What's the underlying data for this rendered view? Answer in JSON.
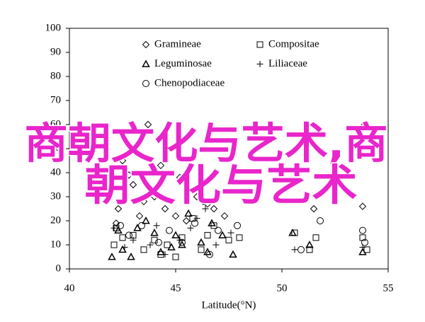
{
  "chart_data": {
    "type": "scatter",
    "xlabel": "Latitude(°N)",
    "xlim": [
      40,
      55
    ],
    "xticks": [
      40,
      45,
      50,
      55
    ],
    "ylim": [
      0,
      100
    ],
    "yticks": [
      0,
      10,
      20,
      30,
      40,
      50,
      60,
      70,
      80,
      90,
      100
    ],
    "overlay_text": [
      "商朝文化与艺术,商",
      "朝文化与艺术"
    ],
    "overlay_color": "#e925cb",
    "series": [
      {
        "name": "Gramineae",
        "color": "#000000",
        "marker": "diamond",
        "x": [
          42.2,
          42.3,
          42.5,
          42.8,
          43.0,
          43.3,
          43.5,
          43.7,
          44.0,
          44.3,
          44.5,
          45.0,
          45.2,
          45.5,
          46.0,
          46.3,
          46.5,
          46.8,
          47.3,
          51.5,
          51.6,
          53.9,
          53.8
        ],
        "values": [
          19,
          25,
          45,
          39,
          35,
          22,
          28,
          60,
          30,
          43,
          25,
          22,
          38,
          20,
          30,
          28,
          27,
          25,
          22,
          25,
          30,
          60,
          26
        ]
      },
      {
        "name": "Compositae",
        "color": "#000000",
        "marker": "square",
        "x": [
          42.1,
          42.2,
          42.5,
          43.0,
          43.5,
          44.0,
          44.3,
          44.6,
          45.0,
          45.3,
          45.8,
          46.2,
          46.5,
          46.8,
          47.5,
          48.0,
          50.6,
          51.3,
          51.6,
          53.8,
          54.0
        ],
        "values": [
          10,
          17,
          13,
          14,
          8,
          12,
          6,
          10,
          5,
          13,
          21,
          8,
          14,
          18,
          12,
          13,
          15,
          8,
          13,
          13,
          8
        ]
      },
      {
        "name": "Leguminosae",
        "color": "#000000",
        "marker": "triangle",
        "x": [
          42.0,
          42.3,
          42.5,
          42.9,
          43.2,
          43.6,
          44.0,
          44.3,
          44.8,
          45.0,
          45.3,
          45.6,
          46.2,
          46.5,
          46.7,
          47.2,
          47.7,
          50.5,
          51.3,
          53.8
        ],
        "values": [
          5,
          16,
          8,
          5,
          17,
          20,
          15,
          7,
          9,
          14,
          10,
          23,
          11,
          7,
          19,
          14,
          6,
          15,
          10,
          7
        ]
      },
      {
        "name": "Liliaceae",
        "color": "#000000",
        "marker": "plus",
        "x": [
          42.1,
          42.6,
          43.0,
          43.8,
          44.1,
          44.5,
          45.2,
          45.7,
          46.0,
          46.4,
          46.9,
          47.6,
          50.6,
          53.8
        ],
        "values": [
          17,
          9,
          12,
          10,
          18,
          6,
          12,
          17,
          21,
          25,
          10,
          15,
          8,
          9
        ]
      },
      {
        "name": "Chenopodiaceae",
        "color": "#000000",
        "marker": "circle",
        "x": [
          42.4,
          42.8,
          43.4,
          44.2,
          44.7,
          45.3,
          45.9,
          46.6,
          47.0,
          47.9,
          50.9,
          51.8,
          53.8,
          53.9
        ],
        "values": [
          18,
          14,
          18,
          11,
          16,
          11,
          19,
          6,
          16,
          18,
          8,
          20,
          16,
          11
        ]
      }
    ]
  }
}
